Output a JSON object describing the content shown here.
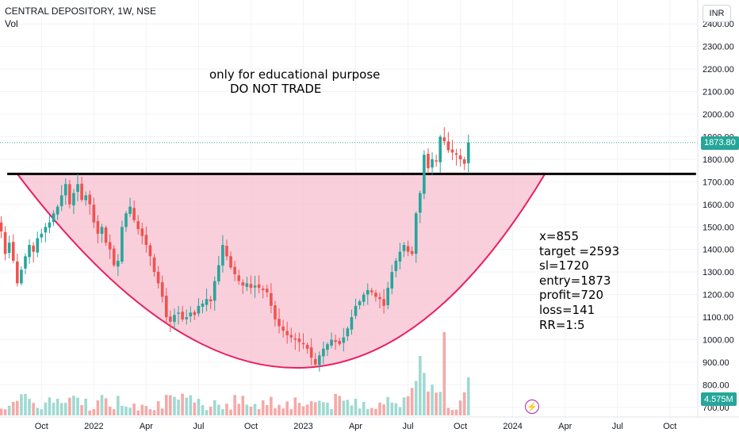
{
  "header": {
    "title": "CENTRAL DEPOSITORY, 1W, NSE",
    "indicator": "Vol",
    "currency_button": "INR"
  },
  "annotations": {
    "note_line1": "only for educational purpose",
    "note_line2": "DO NOT TRADE",
    "stats": [
      "x=855",
      "target =2593",
      "sl=1720",
      "entry=1873",
      "profit=720",
      "loss=141",
      "RR=1:5"
    ]
  },
  "price_tags": {
    "last_price": "1873.80",
    "volume": "4.575M"
  },
  "icons": {
    "replay": "lightning-icon"
  },
  "colors": {
    "up": "#26a69a",
    "down": "#ef5350",
    "vol_up": "#9fd9d2",
    "vol_down": "#f5a9a7",
    "cup_fill": "#f8bfd0",
    "cup_stroke": "#e91e63",
    "level": "#000000",
    "last_price_line": "#26a69a"
  },
  "chart_data": {
    "type": "candlestick",
    "y_axis": {
      "ticks": [
        "700.00",
        "800.00",
        "900.00",
        "1000.00",
        "1100.00",
        "1200.00",
        "1300.00",
        "1400.00",
        "1500.00",
        "1600.00",
        "1700.00",
        "1800.00",
        "1900.00",
        "2000.00",
        "2100.00",
        "2200.00",
        "2300.00",
        "2400.00"
      ],
      "ylim": [
        680,
        2440
      ],
      "position": "right"
    },
    "x_axis": {
      "ticks": [
        "Oct",
        "2022",
        "Apr",
        "Jul",
        "Oct",
        "2023",
        "Apr",
        "Jul",
        "Oct",
        "2024",
        "Apr",
        "Jul",
        "Oct"
      ],
      "tick_weeks": [
        10,
        23,
        36,
        49,
        62,
        75,
        88,
        101,
        114,
        127,
        140,
        153,
        166
      ]
    },
    "horizontal_level": 1735,
    "level_range_weeks": [
      1.5,
      172.5
    ],
    "last_price": 1873.8,
    "volume_last": "4.575M",
    "cup_pattern": {
      "left_week": 4,
      "left_price": 1735,
      "bottom_week": 77,
      "bottom_price": 875,
      "right_week": 135,
      "right_price": 1735
    },
    "closes": [
      1480,
      1380,
      1430,
      1350,
      1250,
      1310,
      1370,
      1420,
      1390,
      1450,
      1470,
      1500,
      1520,
      1560,
      1590,
      1640,
      1690,
      1600,
      1650,
      1690,
      1620,
      1640,
      1600,
      1520,
      1470,
      1500,
      1430,
      1400,
      1330,
      1350,
      1500,
      1560,
      1590,
      1530,
      1490,
      1460,
      1420,
      1370,
      1300,
      1250,
      1190,
      1100,
      1080,
      1110,
      1120,
      1090,
      1100,
      1120,
      1110,
      1150,
      1160,
      1180,
      1170,
      1260,
      1330,
      1420,
      1370,
      1320,
      1290,
      1260,
      1240,
      1250,
      1230,
      1240,
      1230,
      1220,
      1210,
      1150,
      1090,
      1060,
      1040,
      1020,
      1010,
      1000,
      990,
      980,
      960,
      920,
      890,
      930,
      960,
      980,
      1000,
      990,
      980,
      1010,
      1050,
      1100,
      1150,
      1170,
      1200,
      1220,
      1210,
      1190,
      1180,
      1150,
      1230,
      1300,
      1350,
      1390,
      1420,
      1390,
      1380,
      1560,
      1650,
      1820,
      1760,
      1800,
      1790,
      1900,
      1880,
      1840,
      1830,
      1820,
      1800,
      1780,
      1873.8
    ],
    "series": [
      {
        "name": "Vol",
        "type": "volume"
      }
    ]
  }
}
